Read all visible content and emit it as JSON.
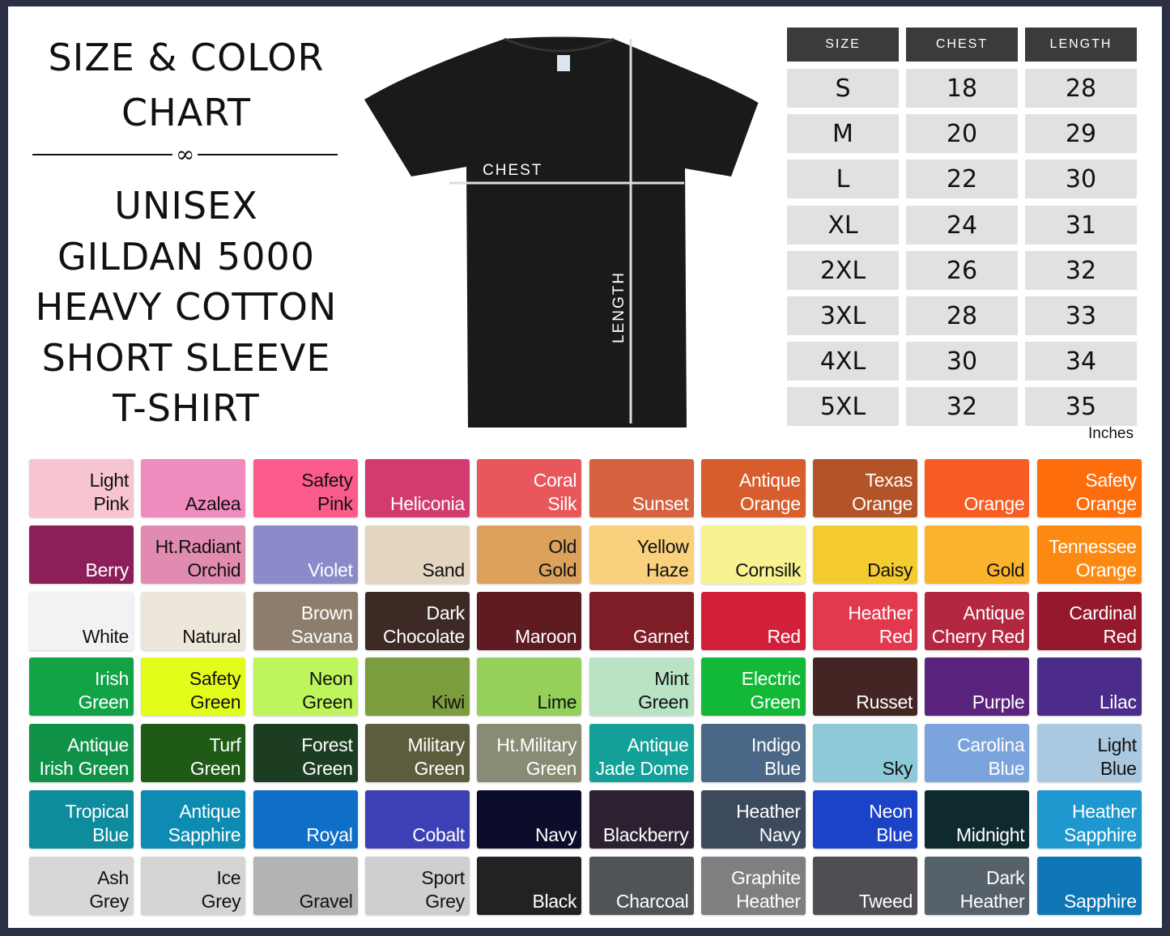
{
  "title": {
    "line1": "SIZE & COLOR",
    "line2": "CHART",
    "lines": [
      "UNISEX",
      "GILDAN 5000",
      "HEAVY COTTON",
      "SHORT SLEEVE",
      "T-SHIRT"
    ]
  },
  "shirt": {
    "chest_label": "CHEST",
    "length_label": "LENGTH",
    "color": "#1a1a1a"
  },
  "size_table": {
    "headers": [
      "SIZE",
      "CHEST",
      "LENGTH"
    ],
    "rows": [
      [
        "S",
        "18",
        "28"
      ],
      [
        "M",
        "20",
        "29"
      ],
      [
        "L",
        "22",
        "30"
      ],
      [
        "XL",
        "24",
        "31"
      ],
      [
        "2XL",
        "26",
        "32"
      ],
      [
        "3XL",
        "28",
        "33"
      ],
      [
        "4XL",
        "30",
        "34"
      ],
      [
        "5XL",
        "32",
        "35"
      ]
    ],
    "unit": "Inches"
  },
  "colors": [
    [
      "Light|Pink",
      "#f7c4d2",
      "#111"
    ],
    [
      "Azalea",
      "#f08bbd",
      "#111"
    ],
    [
      "Safety|Pink",
      "#fb5b8a",
      "#111"
    ],
    [
      "Heliconia",
      "#d23b6f",
      "#fff"
    ],
    [
      "Coral|Silk",
      "#e8575a",
      "#fff"
    ],
    [
      "Sunset",
      "#d5623e",
      "#fff"
    ],
    [
      "Antique|Orange",
      "#d75e2c",
      "#fff"
    ],
    [
      "Texas|Orange",
      "#b35428",
      "#fff"
    ],
    [
      "Orange",
      "#f75d22",
      "#fff"
    ],
    [
      "Safety|Orange",
      "#fd6d0b",
      "#fff"
    ],
    [
      "Berry",
      "#8c1f5a",
      "#fff"
    ],
    [
      "Ht.Radiant|Orchid",
      "#e18bb0",
      "#111"
    ],
    [
      "Violet",
      "#8a8bc8",
      "#fff"
    ],
    [
      "Sand",
      "#e2d6c1",
      "#111"
    ],
    [
      "Old|Gold",
      "#dca25c",
      "#111"
    ],
    [
      "Yellow|Haze",
      "#f9d07c",
      "#111"
    ],
    [
      "Cornsilk",
      "#f8f291",
      "#111"
    ],
    [
      "Daisy",
      "#f4cc30",
      "#111"
    ],
    [
      "Gold",
      "#fbb22c",
      "#111"
    ],
    [
      "Tennessee|Orange",
      "#fc8a12",
      "#fff"
    ],
    [
      "White",
      "#f2f2f2",
      "#111"
    ],
    [
      "Natural",
      "#ede6da",
      "#111"
    ],
    [
      "Brown|Savana",
      "#8d7d6d",
      "#fff"
    ],
    [
      "Dark|Chocolate",
      "#3d2a25",
      "#fff"
    ],
    [
      "Maroon",
      "#5e1b22",
      "#fff"
    ],
    [
      "Garnet",
      "#7f1d27",
      "#fff"
    ],
    [
      "Red",
      "#d3203a",
      "#fff"
    ],
    [
      "Heather|Red",
      "#e3394f",
      "#fff"
    ],
    [
      "Antique|Cherry Red",
      "#b42741",
      "#fff"
    ],
    [
      "Cardinal|Red",
      "#95182d",
      "#fff"
    ],
    [
      "Irish|Green",
      "#12a346",
      "#fff"
    ],
    [
      "Safety|Green",
      "#e2fd1a",
      "#111"
    ],
    [
      "Neon|Green",
      "#bef55c",
      "#111"
    ],
    [
      "Kiwi",
      "#7c9d3d",
      "#111"
    ],
    [
      "Lime",
      "#94d05a",
      "#111"
    ],
    [
      "Mint|Green",
      "#b8e3c4",
      "#111"
    ],
    [
      "Electric|Green",
      "#12b936",
      "#fff"
    ],
    [
      "Russet",
      "#432623",
      "#fff"
    ],
    [
      "Purple",
      "#5a237d",
      "#fff"
    ],
    [
      "Lilac",
      "#4b2c8a",
      "#fff"
    ],
    [
      "Antique|Irish Green",
      "#0f9248",
      "#fff"
    ],
    [
      "Turf|Green",
      "#1f5a17",
      "#fff"
    ],
    [
      "Forest|Green",
      "#1c3d22",
      "#fff"
    ],
    [
      "Military|Green",
      "#5d5d3e",
      "#fff"
    ],
    [
      "Ht.Military|Green",
      "#8a8b74",
      "#fff"
    ],
    [
      "Antique|Jade Dome",
      "#12a098",
      "#fff"
    ],
    [
      "Indigo|Blue",
      "#4b6786",
      "#fff"
    ],
    [
      "Sky",
      "#8dc9d8",
      "#111"
    ],
    [
      "Carolina|Blue",
      "#7aa4db",
      "#fff"
    ],
    [
      "Light|Blue",
      "#aac9e0",
      "#111"
    ],
    [
      "Tropical|Blue",
      "#0e8c9e",
      "#fff"
    ],
    [
      "Antique|Sapphire",
      "#0d8bb3",
      "#fff"
    ],
    [
      "Royal",
      "#0f6ec7",
      "#fff"
    ],
    [
      "Cobalt",
      "#3d3fb5",
      "#fff"
    ],
    [
      "Navy",
      "#0b0d2a",
      "#fff"
    ],
    [
      "Blackberry",
      "#2c2130",
      "#fff"
    ],
    [
      "Heather|Navy",
      "#3d4a5e",
      "#fff"
    ],
    [
      "Neon|Blue",
      "#1a43c8",
      "#fff"
    ],
    [
      "Midnight",
      "#0f2a2f",
      "#fff"
    ],
    [
      "Heather|Sapphire",
      "#1e98cf",
      "#fff"
    ],
    [
      "Ash|Grey",
      "#d7d7d7",
      "#111"
    ],
    [
      "Ice|Grey",
      "#d4d4d4",
      "#111"
    ],
    [
      "Gravel",
      "#b3b3b3",
      "#111"
    ],
    [
      "Sport|Grey",
      "#cfcfcf",
      "#111"
    ],
    [
      "Black",
      "#212224",
      "#fff"
    ],
    [
      "Charcoal",
      "#505456",
      "#fff"
    ],
    [
      "Graphite|Heather",
      "#7d7f80",
      "#fff"
    ],
    [
      "Tweed",
      "#4f4e52",
      "#fff"
    ],
    [
      "Dark|Heather",
      "#56616a",
      "#fff"
    ],
    [
      "Sapphire",
      "#0f77b5",
      "#fff"
    ]
  ]
}
